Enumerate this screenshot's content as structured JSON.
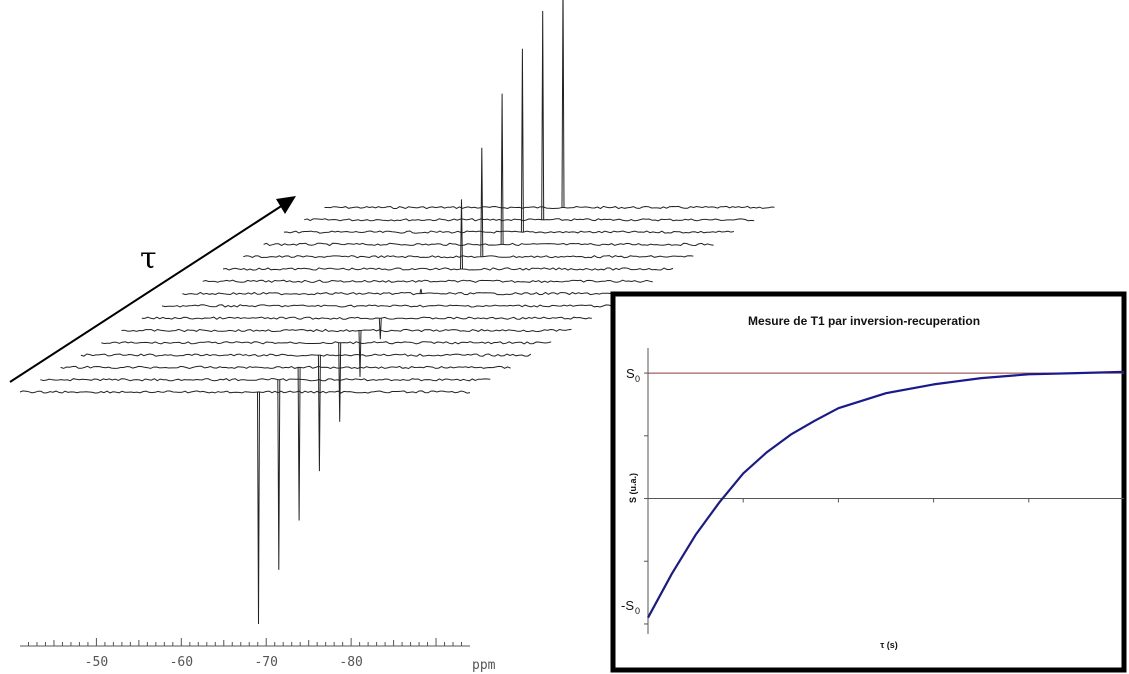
{
  "chart_data": [
    {
      "type": "line",
      "description_kind": "stacked-nmr-spectra",
      "xlabel": "ppm",
      "x_ticks": [
        -50,
        -60,
        -70,
        -80
      ],
      "x_tick_labels": [
        "-50",
        "-60",
        "-70",
        "-80"
      ],
      "xlim": [
        -41,
        -94
      ],
      "offset_axis_symbol": "τ",
      "peaks": [
        {
          "ppm": -69,
          "intensity": -1.0
        },
        {
          "ppm": -69,
          "intensity": -0.82
        },
        {
          "ppm": -69,
          "intensity": -0.66
        },
        {
          "ppm": -69,
          "intensity": -0.5
        },
        {
          "ppm": -69,
          "intensity": -0.34
        },
        {
          "ppm": -69,
          "intensity": -0.2
        },
        {
          "ppm": -69,
          "intensity": -0.09
        },
        {
          "ppm": -69,
          "intensity": 0.0
        },
        {
          "ppm": -69,
          "intensity": 0.02
        },
        {
          "ppm": -69,
          "intensity": 0.0
        },
        {
          "ppm": -69,
          "intensity": 0.3
        },
        {
          "ppm": -69,
          "intensity": 0.47
        },
        {
          "ppm": -69,
          "intensity": 0.65
        },
        {
          "ppm": -69,
          "intensity": 0.79
        },
        {
          "ppm": -69,
          "intensity": 0.9
        },
        {
          "ppm": -69,
          "intensity": 0.98
        }
      ],
      "colors": {
        "spectrum": "#222222",
        "axis": "#555555"
      }
    },
    {
      "type": "line",
      "title": "Mesure de T1 par inversion-recuperation",
      "xlabel": "τ (s)",
      "ylabel": "S (u.a.)",
      "ytick_labels": [
        {
          "main": "S",
          "sub": "0",
          "value": 1
        },
        {
          "main": "-S",
          "sub": "0",
          "value": -1
        }
      ],
      "ylim": [
        -1.08,
        1.2
      ],
      "xlim": [
        0,
        5
      ],
      "series": [
        {
          "x": [
            0,
            0.25,
            0.5,
            0.75,
            1.0,
            1.25,
            1.5,
            1.75,
            2.0,
            2.5,
            3.0,
            3.5,
            4.0,
            4.5,
            5.0
          ],
          "values": [
            -0.95,
            -0.6,
            -0.29,
            -0.03,
            0.2,
            0.37,
            0.51,
            0.62,
            0.72,
            0.84,
            0.91,
            0.96,
            0.99,
            1.0,
            1.01
          ],
          "color": "#1a1a8c"
        }
      ],
      "reference_lines": [
        {
          "y": 1,
          "color": "#8b3a3a"
        },
        {
          "y": 0,
          "color": "#555555"
        }
      ],
      "colors": {
        "frame": "#000000",
        "background": "#ffffff"
      }
    }
  ]
}
